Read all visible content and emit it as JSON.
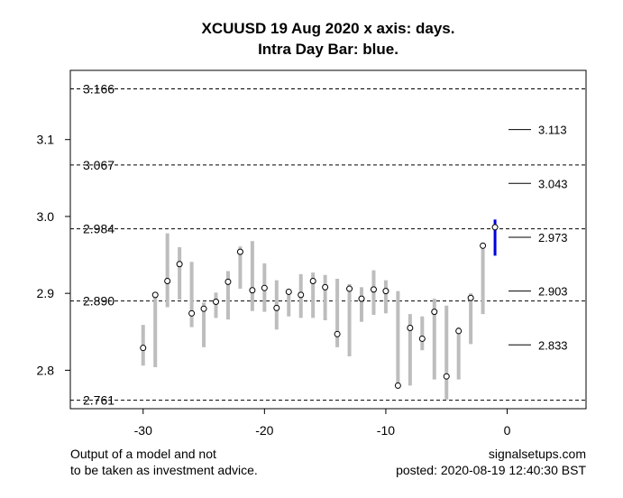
{
  "chart_data": {
    "type": "bar",
    "title": "XCUUSD 19 Aug 2020 x axis: days.",
    "subtitle": "Intra Day Bar: blue.",
    "xlim": [
      -36,
      6.5
    ],
    "ylim": [
      2.75,
      3.19
    ],
    "x_ticks": [
      -30,
      -20,
      -10,
      0
    ],
    "y_ticks": [
      2.8,
      2.9,
      3.0,
      3.1
    ],
    "x_tick_labels": [
      "-30",
      "-20",
      "-10",
      "0"
    ],
    "y_tick_labels": [
      "2.8",
      "2.9",
      "3.0",
      "3.1"
    ],
    "grid": false,
    "reference_levels": [
      {
        "value": 3.166,
        "label": "3.166"
      },
      {
        "value": 3.067,
        "label": "3.067"
      },
      {
        "value": 2.984,
        "label": "2.984"
      },
      {
        "value": 2.89,
        "label": "2.890"
      },
      {
        "value": 2.761,
        "label": "2.761"
      }
    ],
    "forecast_levels": [
      {
        "value": 3.113,
        "label": "3.113"
      },
      {
        "value": 3.043,
        "label": "3.043"
      },
      {
        "value": 2.973,
        "label": "2.973"
      },
      {
        "value": 2.903,
        "label": "2.903"
      },
      {
        "value": 2.833,
        "label": "2.833"
      }
    ],
    "series": [
      {
        "color": "#bdbdbd",
        "bars": [
          {
            "x": -30,
            "low": 2.806,
            "high": 2.859,
            "close": 2.829
          },
          {
            "x": -29,
            "low": 2.804,
            "high": 2.901,
            "close": 2.898
          },
          {
            "x": -28,
            "low": 2.882,
            "high": 2.978,
            "close": 2.916
          },
          {
            "x": -27,
            "low": 2.892,
            "high": 2.96,
            "close": 2.938
          },
          {
            "x": -26,
            "low": 2.856,
            "high": 2.941,
            "close": 2.874
          },
          {
            "x": -25,
            "low": 2.83,
            "high": 2.888,
            "close": 2.88
          },
          {
            "x": -24,
            "low": 2.868,
            "high": 2.901,
            "close": 2.889
          },
          {
            "x": -23,
            "low": 2.866,
            "high": 2.929,
            "close": 2.915
          },
          {
            "x": -22,
            "low": 2.906,
            "high": 2.961,
            "close": 2.954
          },
          {
            "x": -21,
            "low": 2.877,
            "high": 2.968,
            "close": 2.904
          },
          {
            "x": -20,
            "low": 2.876,
            "high": 2.939,
            "close": 2.907
          },
          {
            "x": -19,
            "low": 2.853,
            "high": 2.917,
            "close": 2.881
          },
          {
            "x": -18,
            "low": 2.87,
            "high": 2.904,
            "close": 2.902
          },
          {
            "x": -17,
            "low": 2.868,
            "high": 2.925,
            "close": 2.898
          },
          {
            "x": -16,
            "low": 2.868,
            "high": 2.927,
            "close": 2.916
          },
          {
            "x": -15,
            "low": 2.865,
            "high": 2.924,
            "close": 2.908
          },
          {
            "x": -14,
            "low": 2.83,
            "high": 2.919,
            "close": 2.847
          },
          {
            "x": -13,
            "low": 2.818,
            "high": 2.912,
            "close": 2.906
          },
          {
            "x": -12,
            "low": 2.863,
            "high": 2.908,
            "close": 2.893
          },
          {
            "x": -11,
            "low": 2.872,
            "high": 2.93,
            "close": 2.905
          },
          {
            "x": -10,
            "low": 2.874,
            "high": 2.917,
            "close": 2.903
          },
          {
            "x": -9,
            "low": 2.776,
            "high": 2.903,
            "close": 2.78
          },
          {
            "x": -8,
            "low": 2.78,
            "high": 2.873,
            "close": 2.855
          },
          {
            "x": -7,
            "low": 2.826,
            "high": 2.87,
            "close": 2.841
          },
          {
            "x": -6,
            "low": 2.788,
            "high": 2.893,
            "close": 2.876
          },
          {
            "x": -5,
            "low": 2.762,
            "high": 2.884,
            "close": 2.792
          },
          {
            "x": -4,
            "low": 2.788,
            "high": 2.856,
            "close": 2.851
          },
          {
            "x": -3,
            "low": 2.834,
            "high": 2.9,
            "close": 2.894
          },
          {
            "x": -2,
            "low": 2.873,
            "high": 2.966,
            "close": 2.962
          }
        ]
      },
      {
        "color": "#0000dd",
        "bars": [
          {
            "x": -1,
            "low": 2.949,
            "high": 2.996,
            "close": 2.986
          }
        ]
      }
    ]
  },
  "footer": {
    "disclaimer_line1": "Output of a model and not",
    "disclaimer_line2": "to be taken as investment advice.",
    "site": "signalsetups.com",
    "posted": "posted: 2020-08-19 12:40:30 BST"
  }
}
